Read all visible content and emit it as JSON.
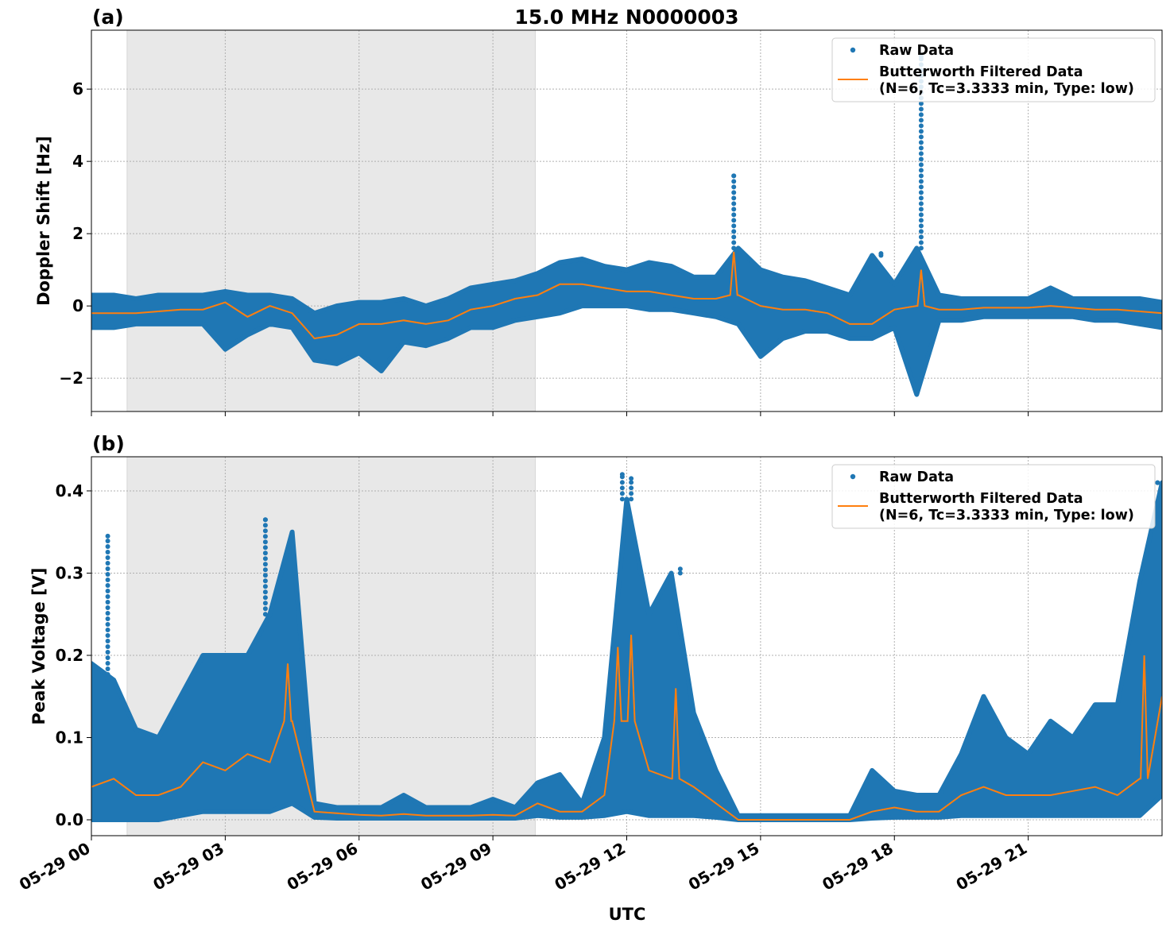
{
  "chart_data": [
    {
      "type": "scatter+line",
      "panel_label": "(a)",
      "title": "15.0 MHz N0000003",
      "ylabel": "Doppler Shift [Hz]",
      "xlabel": "",
      "xlim": [
        "05-29 00:00",
        "05-30 00:00"
      ],
      "ylim": [
        -2.92,
        7.63
      ],
      "yticks": [
        -2,
        0,
        2,
        4,
        6
      ],
      "ytick_labels": [
        "−2",
        "0",
        "2",
        "4",
        "6"
      ],
      "grid": true,
      "shaded_span": [
        "05-29 00:48",
        "05-29 09:57"
      ],
      "legend": {
        "placement": "top-right",
        "entries": [
          "Raw Data",
          "Butterworth Filtered Data",
          "(N=6, Tc=3.3333 min, Type: low)"
        ]
      },
      "series": [
        {
          "name": "Raw Data",
          "kind": "scatter",
          "color": "#1f77b4",
          "raw_min": [
            -0.6,
            -0.6,
            -0.5,
            -0.5,
            -0.5,
            -0.5,
            -1.2,
            -0.8,
            -0.5,
            -0.6,
            -1.5,
            -1.6,
            -1.3,
            -1.8,
            -1.0,
            -1.1,
            -0.9,
            -0.6,
            -0.6,
            -0.4,
            -0.3,
            -0.2,
            0.0,
            0.0,
            0.0,
            -0.1,
            -0.1,
            -0.2,
            -0.3,
            -0.5,
            -1.4,
            -0.9,
            -0.7,
            -0.7,
            -0.9,
            -0.9,
            -0.6,
            -2.45,
            -0.4,
            -0.4,
            -0.3,
            -0.3,
            -0.3,
            -0.3,
            -0.3,
            -0.4,
            -0.4,
            -0.5,
            -0.6
          ],
          "raw_max": [
            0.3,
            0.3,
            0.2,
            0.3,
            0.3,
            0.3,
            0.4,
            0.3,
            0.3,
            0.2,
            -0.2,
            0.0,
            0.1,
            0.1,
            0.2,
            0.0,
            0.2,
            0.5,
            0.6,
            0.7,
            0.9,
            1.2,
            1.3,
            1.1,
            1.0,
            1.2,
            1.1,
            0.8,
            0.8,
            1.6,
            1.0,
            0.8,
            0.7,
            0.5,
            0.3,
            1.4,
            0.6,
            1.6,
            0.3,
            0.2,
            0.2,
            0.2,
            0.2,
            0.5,
            0.2,
            0.2,
            0.2,
            0.2,
            0.1
          ],
          "spikes": [
            [
              "05-29 14:24",
              3.6
            ],
            [
              "05-29 18:36",
              6.9
            ],
            [
              "05-29 17:42",
              1.45
            ]
          ]
        },
        {
          "name": "Butterworth Filtered Data",
          "kind": "line",
          "color": "#ff7f0e",
          "values": [
            -0.2,
            -0.2,
            -0.2,
            -0.15,
            -0.1,
            -0.1,
            0.1,
            -0.3,
            0.0,
            -0.2,
            -0.9,
            -0.8,
            -0.5,
            -0.5,
            -0.4,
            -0.5,
            -0.4,
            -0.1,
            0.0,
            0.2,
            0.3,
            0.6,
            0.6,
            0.5,
            0.4,
            0.4,
            0.3,
            0.2,
            0.2,
            0.3,
            0.0,
            -0.1,
            -0.1,
            -0.2,
            -0.5,
            -0.5,
            -0.1,
            0.0,
            -0.1,
            -0.1,
            -0.05,
            -0.05,
            -0.05,
            0.0,
            -0.05,
            -0.1,
            -0.1,
            -0.15,
            -0.2
          ],
          "peaks": [
            [
              "05-29 14:24",
              1.5
            ],
            [
              "05-29 18:36",
              1.0
            ]
          ]
        }
      ]
    },
    {
      "type": "scatter+line",
      "panel_label": "(b)",
      "title": "",
      "ylabel": "Peak Voltage [V]",
      "xlabel": "UTC",
      "xlim": [
        "05-29 00:00",
        "05-30 00:00"
      ],
      "ylim": [
        -0.0193,
        0.4415
      ],
      "yticks": [
        0.0,
        0.1,
        0.2,
        0.3,
        0.4
      ],
      "ytick_labels": [
        "0.0",
        "0.1",
        "0.2",
        "0.3",
        "0.4"
      ],
      "grid": true,
      "shaded_span": [
        "05-29 00:48",
        "05-29 09:57"
      ],
      "legend": {
        "placement": "top-right",
        "entries": [
          "Raw Data",
          "Butterworth Filtered Data",
          "(N=6, Tc=3.3333 min, Type: low)"
        ]
      },
      "series": [
        {
          "name": "Raw Data",
          "kind": "scatter",
          "color": "#1f77b4",
          "raw_min": [
            0.0,
            0.0,
            0.0,
            0.0,
            0.005,
            0.01,
            0.01,
            0.01,
            0.01,
            0.02,
            0.003,
            0.002,
            0.002,
            0.002,
            0.002,
            0.002,
            0.002,
            0.002,
            0.002,
            0.002,
            0.005,
            0.003,
            0.003,
            0.005,
            0.01,
            0.005,
            0.005,
            0.005,
            0.003,
            0.0,
            0.0,
            0.0,
            0.0,
            0.0,
            0.0,
            0.002,
            0.003,
            0.003,
            0.003,
            0.005,
            0.005,
            0.005,
            0.005,
            0.005,
            0.005,
            0.005,
            0.005,
            0.005,
            0.03
          ],
          "raw_max": [
            0.19,
            0.17,
            0.11,
            0.1,
            0.15,
            0.2,
            0.2,
            0.2,
            0.25,
            0.35,
            0.02,
            0.015,
            0.015,
            0.015,
            0.03,
            0.015,
            0.015,
            0.015,
            0.025,
            0.015,
            0.045,
            0.055,
            0.02,
            0.1,
            0.39,
            0.25,
            0.3,
            0.13,
            0.06,
            0.005,
            0.005,
            0.005,
            0.005,
            0.005,
            0.005,
            0.06,
            0.035,
            0.03,
            0.03,
            0.08,
            0.15,
            0.1,
            0.08,
            0.12,
            0.1,
            0.14,
            0.14,
            0.29,
            0.41
          ],
          "spikes": [
            [
              "05-29 00:22",
              0.345
            ],
            [
              "05-29 03:54",
              0.365
            ],
            [
              "05-29 11:54",
              0.42
            ],
            [
              "05-29 12:06",
              0.415
            ],
            [
              "05-29 13:12",
              0.305
            ],
            [
              "05-29 23:54",
              0.41
            ]
          ]
        },
        {
          "name": "Butterworth Filtered Data",
          "kind": "line",
          "color": "#ff7f0e",
          "values": [
            0.04,
            0.05,
            0.03,
            0.03,
            0.04,
            0.07,
            0.06,
            0.08,
            0.07,
            0.12,
            0.01,
            0.008,
            0.006,
            0.005,
            0.007,
            0.005,
            0.005,
            0.005,
            0.006,
            0.005,
            0.02,
            0.01,
            0.01,
            0.03,
            0.12,
            0.06,
            0.05,
            0.04,
            0.02,
            0.0,
            0.0,
            0.0,
            0.0,
            0.0,
            0.0,
            0.01,
            0.015,
            0.01,
            0.01,
            0.03,
            0.04,
            0.03,
            0.03,
            0.03,
            0.035,
            0.04,
            0.03,
            0.05,
            0.15
          ],
          "peaks": [
            [
              "05-29 04:24",
              0.19
            ],
            [
              "05-29 11:48",
              0.21
            ],
            [
              "05-29 12:06",
              0.225
            ],
            [
              "05-29 13:06",
              0.16
            ],
            [
              "05-29 23:36",
              0.2
            ]
          ]
        }
      ]
    }
  ],
  "x_axis": {
    "ticks": [
      "05-29 00:00",
      "05-29 03:00",
      "05-29 06:00",
      "05-29 09:00",
      "05-29 12:00",
      "05-29 15:00",
      "05-29 18:00",
      "05-29 21:00"
    ],
    "tick_labels": [
      "05-29 00",
      "05-29 03",
      "05-29 06",
      "05-29 09",
      "05-29 12",
      "05-29 15",
      "05-29 18",
      "05-29 21"
    ],
    "sample_times_step_minutes": 30
  }
}
